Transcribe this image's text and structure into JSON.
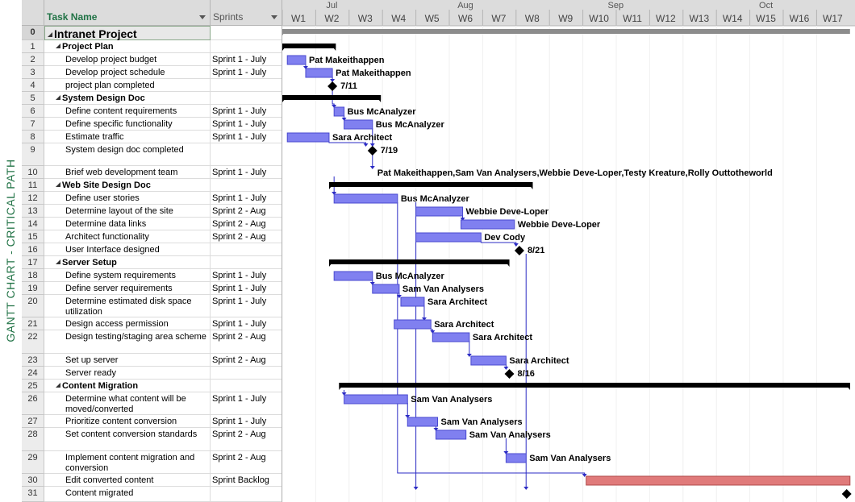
{
  "sidebar_label": "GANTT CHART - CRITICAL PATH",
  "columns": {
    "task_name": "Task Name",
    "sprints": "Sprints"
  },
  "months": [
    "Jul",
    "Aug",
    "Sep",
    "Oct"
  ],
  "weeks": [
    "W1",
    "W2",
    "W3",
    "W4",
    "W5",
    "W6",
    "W7",
    "W8",
    "W9",
    "W10",
    "W11",
    "W12",
    "W13",
    "W14",
    "W15",
    "W16",
    "W17"
  ],
  "tasks": [
    {
      "id": "0",
      "name": "Intranet Project",
      "sprint": "",
      "type": "project"
    },
    {
      "id": "1",
      "name": "Project Plan",
      "sprint": "",
      "type": "summary"
    },
    {
      "id": "2",
      "name": "Develop project budget",
      "sprint": "Sprint 1 - July",
      "type": "task"
    },
    {
      "id": "3",
      "name": "Develop project schedule",
      "sprint": "Sprint 1 - July",
      "type": "task"
    },
    {
      "id": "4",
      "name": "project plan completed",
      "sprint": "",
      "type": "milestone"
    },
    {
      "id": "5",
      "name": "System Design Doc",
      "sprint": "",
      "type": "summary"
    },
    {
      "id": "6",
      "name": "Define content requirements",
      "sprint": "Sprint 1 - July",
      "type": "task"
    },
    {
      "id": "7",
      "name": "Define specific functionality",
      "sprint": "Sprint 1 - July",
      "type": "task"
    },
    {
      "id": "8",
      "name": "Estimate traffic",
      "sprint": "Sprint 1 - July",
      "type": "task"
    },
    {
      "id": "9",
      "name": "System design doc completed",
      "sprint": "",
      "type": "milestone"
    },
    {
      "id": "10",
      "name": "Brief web development team",
      "sprint": "Sprint 1 - July",
      "type": "task"
    },
    {
      "id": "11",
      "name": "Web Site Design Doc",
      "sprint": "",
      "type": "summary"
    },
    {
      "id": "12",
      "name": "Define user stories",
      "sprint": "Sprint 1 - July",
      "type": "task"
    },
    {
      "id": "13",
      "name": "Determine layout of the site",
      "sprint": "Sprint 2 - Aug",
      "type": "task"
    },
    {
      "id": "14",
      "name": "Determine data links",
      "sprint": "Sprint 2 - Aug",
      "type": "task"
    },
    {
      "id": "15",
      "name": "Architect functionality",
      "sprint": "Sprint 2 - Aug",
      "type": "task"
    },
    {
      "id": "16",
      "name": "User Interface designed",
      "sprint": "",
      "type": "milestone"
    },
    {
      "id": "17",
      "name": "Server Setup",
      "sprint": "",
      "type": "summary"
    },
    {
      "id": "18",
      "name": "Define system requirements",
      "sprint": "Sprint 1 - July",
      "type": "task"
    },
    {
      "id": "19",
      "name": "Define server requirements",
      "sprint": "Sprint 1 - July",
      "type": "task"
    },
    {
      "id": "20",
      "name": "Determine estimated disk space utilization",
      "sprint": "Sprint 1 - July",
      "type": "task"
    },
    {
      "id": "21",
      "name": "Design access permission",
      "sprint": "Sprint 1 - July",
      "type": "task"
    },
    {
      "id": "22",
      "name": "Design testing/staging area scheme",
      "sprint": "Sprint 2 - Aug",
      "type": "task"
    },
    {
      "id": "23",
      "name": "Set up server",
      "sprint": "Sprint 2 - Aug",
      "type": "task"
    },
    {
      "id": "24",
      "name": "Server ready",
      "sprint": "",
      "type": "milestone"
    },
    {
      "id": "25",
      "name": "Content Migration",
      "sprint": "",
      "type": "summary"
    },
    {
      "id": "26",
      "name": "Determine what content will be moved/converted",
      "sprint": "Sprint 1 - July",
      "type": "task"
    },
    {
      "id": "27",
      "name": "Prioritize content conversion",
      "sprint": "Sprint 1 - July",
      "type": "task"
    },
    {
      "id": "28",
      "name": "Set content conversion standards",
      "sprint": "Sprint 2 - Aug",
      "type": "task"
    },
    {
      "id": "29",
      "name": "Implement content migration and conversion",
      "sprint": "Sprint 2 - Aug",
      "type": "task"
    },
    {
      "id": "30",
      "name": "Edit converted content",
      "sprint": "Sprint Backlog",
      "type": "task"
    },
    {
      "id": "31",
      "name": "Content migrated",
      "sprint": "",
      "type": "milestone"
    }
  ],
  "chart_data": {
    "type": "gantt",
    "time_unit": "week",
    "bars": [
      {
        "row": "0",
        "kind": "project",
        "start": 1,
        "end": 18
      },
      {
        "row": "1",
        "kind": "summary",
        "start": 1,
        "end": 2.6
      },
      {
        "row": "2",
        "kind": "task",
        "start": 1.15,
        "end": 1.7,
        "label": "Pat Makeithappen"
      },
      {
        "row": "3",
        "kind": "task",
        "start": 1.7,
        "end": 2.5,
        "label": "Pat Makeithappen"
      },
      {
        "row": "4",
        "kind": "milestone",
        "at": 2.5,
        "label": "7/11"
      },
      {
        "row": "5",
        "kind": "summary",
        "start": 1,
        "end": 3.95
      },
      {
        "row": "6",
        "kind": "task",
        "start": 2.55,
        "end": 2.85,
        "label": "Bus McAnalyzer"
      },
      {
        "row": "7",
        "kind": "task",
        "start": 2.85,
        "end": 3.7,
        "label": "Bus McAnalyzer"
      },
      {
        "row": "8",
        "kind": "task",
        "start": 1.15,
        "end": 2.4,
        "label": "Sara Architect"
      },
      {
        "row": "9",
        "kind": "milestone",
        "at": 3.7,
        "label": "7/19"
      },
      {
        "row": "10",
        "kind": "connector",
        "at": 3.7,
        "label": "Pat Makeithappen,Sam Van Analysers,Webbie Deve-Loper,Testy Kreature,Rolly Outtotheworld"
      },
      {
        "row": "11",
        "kind": "summary",
        "start": 2.4,
        "end": 8.5
      },
      {
        "row": "12",
        "kind": "task",
        "start": 2.55,
        "end": 4.45,
        "label": "Bus McAnalyzer"
      },
      {
        "row": "13",
        "kind": "task",
        "start": 5.0,
        "end": 6.4,
        "label": "Webbie Deve-Loper"
      },
      {
        "row": "14",
        "kind": "task",
        "start": 6.35,
        "end": 7.95,
        "label": "Webbie Deve-Loper"
      },
      {
        "row": "15",
        "kind": "task",
        "start": 5.0,
        "end": 6.95,
        "label": "Dev Cody"
      },
      {
        "row": "16",
        "kind": "milestone",
        "at": 8.1,
        "label": "8/21"
      },
      {
        "row": "17",
        "kind": "summary",
        "start": 2.4,
        "end": 7.8
      },
      {
        "row": "18",
        "kind": "task",
        "start": 2.55,
        "end": 3.7,
        "label": "Bus McAnalyzer"
      },
      {
        "row": "19",
        "kind": "task",
        "start": 3.7,
        "end": 4.5,
        "label": "Sam Van Analysers"
      },
      {
        "row": "20",
        "kind": "task",
        "start": 4.55,
        "end": 5.25,
        "label": "Sara Architect"
      },
      {
        "row": "21",
        "kind": "task",
        "start": 4.35,
        "end": 5.45,
        "label": "Sara Architect"
      },
      {
        "row": "22",
        "kind": "task",
        "start": 5.5,
        "end": 6.6,
        "label": "Sara Architect"
      },
      {
        "row": "23",
        "kind": "task",
        "start": 6.65,
        "end": 7.7,
        "label": "Sara Architect"
      },
      {
        "row": "24",
        "kind": "milestone",
        "at": 7.8,
        "label": "8/16"
      },
      {
        "row": "25",
        "kind": "summary",
        "start": 2.7,
        "end": 18
      },
      {
        "row": "26",
        "kind": "task",
        "start": 2.85,
        "end": 4.75,
        "label": "Sam Van Analysers"
      },
      {
        "row": "27",
        "kind": "task",
        "start": 4.75,
        "end": 5.65,
        "label": "Sam Van Analysers"
      },
      {
        "row": "28",
        "kind": "task",
        "start": 5.6,
        "end": 6.5,
        "label": "Sam Van Analysers"
      },
      {
        "row": "29",
        "kind": "task",
        "start": 7.7,
        "end": 8.3,
        "label": "Sam Van Analysers"
      },
      {
        "row": "30",
        "kind": "critical",
        "start": 10.1,
        "end": 18
      },
      {
        "row": "31",
        "kind": "milestone",
        "at": 17.9,
        "label": ""
      }
    ],
    "links": [
      [
        1.7,
        2,
        1.7,
        3
      ],
      [
        2.5,
        3,
        2.5,
        4
      ],
      [
        2.5,
        4,
        2.55,
        6
      ],
      [
        2.85,
        6,
        2.85,
        7
      ],
      [
        3.7,
        7,
        3.7,
        9
      ],
      [
        2.4,
        8,
        3.5,
        9
      ],
      [
        3.7,
        9,
        3.7,
        10
      ],
      [
        2.55,
        10,
        2.55,
        12
      ],
      [
        4.45,
        12,
        10.05,
        30
      ],
      [
        5.0,
        12,
        5.0,
        31
      ],
      [
        6.4,
        13,
        6.4,
        14
      ],
      [
        6.95,
        15,
        8.0,
        16
      ],
      [
        3.7,
        18,
        3.7,
        19
      ],
      [
        4.5,
        19,
        4.5,
        20
      ],
      [
        5.25,
        20,
        5.25,
        21
      ],
      [
        5.45,
        21,
        5.5,
        22
      ],
      [
        6.6,
        22,
        6.6,
        23
      ],
      [
        7.7,
        23,
        7.7,
        24
      ],
      [
        2.85,
        25,
        2.85,
        26
      ],
      [
        4.75,
        26,
        4.75,
        27
      ],
      [
        5.6,
        27,
        5.6,
        28
      ],
      [
        7.7,
        28,
        7.7,
        29
      ],
      [
        8.3,
        16,
        8.3,
        31
      ]
    ],
    "colors": {
      "task": "#8080f0",
      "task_border": "#4a4acf",
      "critical": "#e07a7a",
      "summary": "#000000",
      "link": "#2b2bc4",
      "project": "#8c8c8c"
    }
  }
}
